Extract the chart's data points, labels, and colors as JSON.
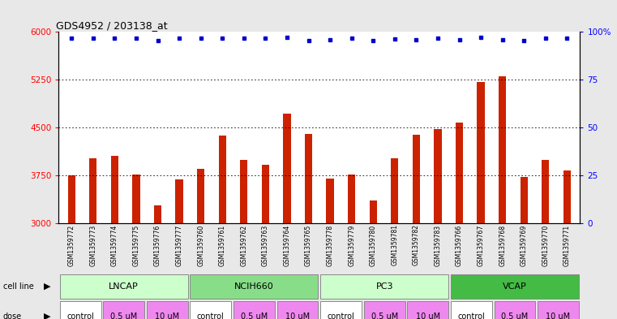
{
  "title": "GDS4952 / 203138_at",
  "samples": [
    "GSM1359772",
    "GSM1359773",
    "GSM1359774",
    "GSM1359775",
    "GSM1359776",
    "GSM1359777",
    "GSM1359760",
    "GSM1359761",
    "GSM1359762",
    "GSM1359763",
    "GSM1359764",
    "GSM1359765",
    "GSM1359778",
    "GSM1359779",
    "GSM1359780",
    "GSM1359781",
    "GSM1359782",
    "GSM1359783",
    "GSM1359766",
    "GSM1359767",
    "GSM1359768",
    "GSM1359769",
    "GSM1359770",
    "GSM1359771"
  ],
  "bar_values": [
    3750,
    4020,
    4060,
    3760,
    3280,
    3690,
    3850,
    4380,
    4000,
    3920,
    4720,
    4400,
    3700,
    3760,
    3360,
    4020,
    4390,
    4480,
    4580,
    5220,
    5310,
    3730,
    4000,
    3830
  ],
  "percentile_values": [
    5900,
    5900,
    5900,
    5900,
    5870,
    5900,
    5900,
    5900,
    5900,
    5900,
    5920,
    5870,
    5880,
    5900,
    5870,
    5890,
    5880,
    5900,
    5880,
    5920,
    5880,
    5870,
    5900,
    5900
  ],
  "bar_color": "#CC2200",
  "dot_color": "#0000CC",
  "ylim": [
    3000,
    6000
  ],
  "yticks": [
    3000,
    3750,
    4500,
    5250,
    6000
  ],
  "ytick_labels_left": [
    "3000",
    "3750",
    "4500",
    "5250",
    "6000"
  ],
  "ytick_labels_right": [
    "0",
    "25",
    "50",
    "75",
    "100%"
  ],
  "grid_values": [
    3750,
    4500,
    5250
  ],
  "cell_lines": [
    {
      "name": "LNCAP",
      "start": 0,
      "end": 6,
      "color": "#ccffcc"
    },
    {
      "name": "NCIH660",
      "start": 6,
      "end": 12,
      "color": "#88dd88"
    },
    {
      "name": "PC3",
      "start": 12,
      "end": 18,
      "color": "#ccffcc"
    },
    {
      "name": "VCAP",
      "start": 18,
      "end": 24,
      "color": "#44bb44"
    }
  ],
  "dose_info": [
    {
      "name": "control",
      "start": 0,
      "end": 2,
      "color": "#ffffff"
    },
    {
      "name": "0.5 uM",
      "start": 2,
      "end": 4,
      "color": "#ee88ee"
    },
    {
      "name": "10 uM",
      "start": 4,
      "end": 6,
      "color": "#ee88ee"
    },
    {
      "name": "control",
      "start": 6,
      "end": 8,
      "color": "#ffffff"
    },
    {
      "name": "0.5 uM",
      "start": 8,
      "end": 10,
      "color": "#ee88ee"
    },
    {
      "name": "10 uM",
      "start": 10,
      "end": 12,
      "color": "#ee88ee"
    },
    {
      "name": "control",
      "start": 12,
      "end": 14,
      "color": "#ffffff"
    },
    {
      "name": "0.5 uM",
      "start": 14,
      "end": 16,
      "color": "#ee88ee"
    },
    {
      "name": "10 uM",
      "start": 16,
      "end": 18,
      "color": "#ee88ee"
    },
    {
      "name": "control",
      "start": 18,
      "end": 20,
      "color": "#ffffff"
    },
    {
      "name": "0.5 uM",
      "start": 20,
      "end": 22,
      "color": "#ee88ee"
    },
    {
      "name": "10 uM",
      "start": 22,
      "end": 24,
      "color": "#ee88ee"
    }
  ],
  "bg_color": "#e8e8e8",
  "plot_bg": "#ffffff",
  "xtick_area_color": "#d0d0d0"
}
